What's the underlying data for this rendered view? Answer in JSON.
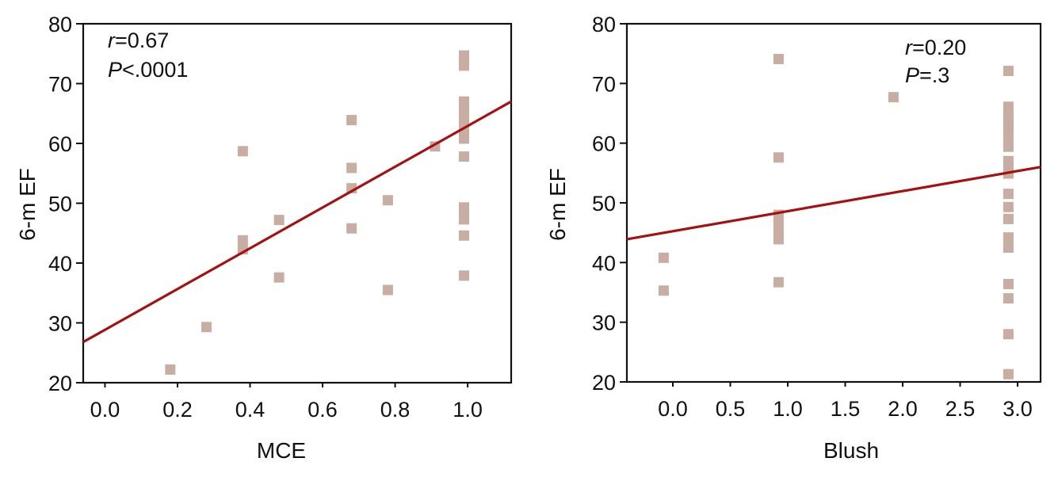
{
  "chart_data": [
    {
      "type": "scatter",
      "xlabel": "MCE",
      "ylabel": "6-m EF",
      "xlim": [
        -0.06,
        1.12
      ],
      "ylim": [
        20,
        80
      ],
      "xticks": [
        "0.0",
        "0.2",
        "0.4",
        "0.6",
        "0.8",
        "1.0"
      ],
      "xtick_values": [
        0.0,
        0.2,
        0.4,
        0.6,
        0.8,
        1.0
      ],
      "yticks": [
        "20",
        "30",
        "40",
        "50",
        "60",
        "70",
        "80"
      ],
      "ytick_values": [
        20,
        30,
        40,
        50,
        60,
        70,
        80
      ],
      "annotation": {
        "r_sym": "r",
        "r_val": "=0.67",
        "p_sym": "P",
        "p_val": "<.0001"
      },
      "regression": {
        "x": [
          -0.06,
          1.12
        ],
        "y": [
          26.8,
          67.0
        ]
      },
      "points": [
        [
          0.18,
          22.2
        ],
        [
          0.28,
          29.3
        ],
        [
          0.38,
          58.7
        ],
        [
          0.38,
          43.8
        ],
        [
          0.38,
          42.3
        ],
        [
          0.48,
          47.2
        ],
        [
          0.48,
          37.6
        ],
        [
          0.68,
          63.9
        ],
        [
          0.68,
          55.9
        ],
        [
          0.68,
          52.5
        ],
        [
          0.68,
          45.8
        ],
        [
          0.78,
          50.5
        ],
        [
          0.78,
          35.5
        ],
        [
          0.91,
          59.5
        ],
        [
          0.99,
          74.7
        ],
        [
          0.99,
          73.0
        ],
        [
          0.99,
          67.0
        ],
        [
          0.99,
          66.0
        ],
        [
          0.99,
          64.8
        ],
        [
          0.99,
          63.5
        ],
        [
          0.99,
          62.5
        ],
        [
          0.99,
          60.8
        ],
        [
          0.99,
          57.8
        ],
        [
          0.99,
          49.3
        ],
        [
          0.99,
          48.3
        ],
        [
          0.99,
          47.3
        ],
        [
          0.99,
          44.6
        ],
        [
          0.99,
          37.9
        ]
      ]
    },
    {
      "type": "scatter",
      "xlabel": "Blush",
      "ylabel": "6-m EF",
      "xlim": [
        -0.4,
        3.2
      ],
      "ylim": [
        20,
        80
      ],
      "xticks": [
        "0.0",
        "0.5",
        "1.0",
        "1.5",
        "2.0",
        "2.5",
        "3.0"
      ],
      "xtick_values": [
        0.0,
        0.5,
        1.0,
        1.5,
        2.0,
        2.5,
        3.0
      ],
      "yticks": [
        "20",
        "30",
        "40",
        "50",
        "60",
        "70",
        "80"
      ],
      "ytick_values": [
        20,
        30,
        40,
        50,
        60,
        70,
        80
      ],
      "annotation": {
        "r_sym": "r",
        "r_val": "=0.20",
        "p_sym": "P",
        "p_val": "=.3"
      },
      "regression": {
        "x": [
          -0.4,
          3.2
        ],
        "y": [
          43.9,
          56.0
        ]
      },
      "points": [
        [
          -0.08,
          40.8
        ],
        [
          -0.08,
          35.3
        ],
        [
          0.92,
          74.1
        ],
        [
          0.92,
          57.6
        ],
        [
          0.92,
          48.0
        ],
        [
          0.92,
          46.5
        ],
        [
          0.92,
          45.2
        ],
        [
          0.92,
          43.9
        ],
        [
          0.92,
          36.7
        ],
        [
          1.92,
          67.7
        ],
        [
          2.92,
          72.1
        ],
        [
          2.92,
          66.1
        ],
        [
          2.92,
          65.0
        ],
        [
          2.92,
          64.0
        ],
        [
          2.92,
          63.1
        ],
        [
          2.92,
          62.2
        ],
        [
          2.92,
          61.0
        ],
        [
          2.92,
          59.4
        ],
        [
          2.92,
          57.0
        ],
        [
          2.92,
          56.0
        ],
        [
          2.92,
          54.9
        ],
        [
          2.92,
          51.5
        ],
        [
          2.92,
          49.3
        ],
        [
          2.92,
          47.3
        ],
        [
          2.92,
          44.2
        ],
        [
          2.92,
          42.5
        ],
        [
          2.92,
          36.4
        ],
        [
          2.92,
          34.0
        ],
        [
          2.92,
          28.0
        ],
        [
          2.92,
          21.3
        ]
      ]
    }
  ]
}
